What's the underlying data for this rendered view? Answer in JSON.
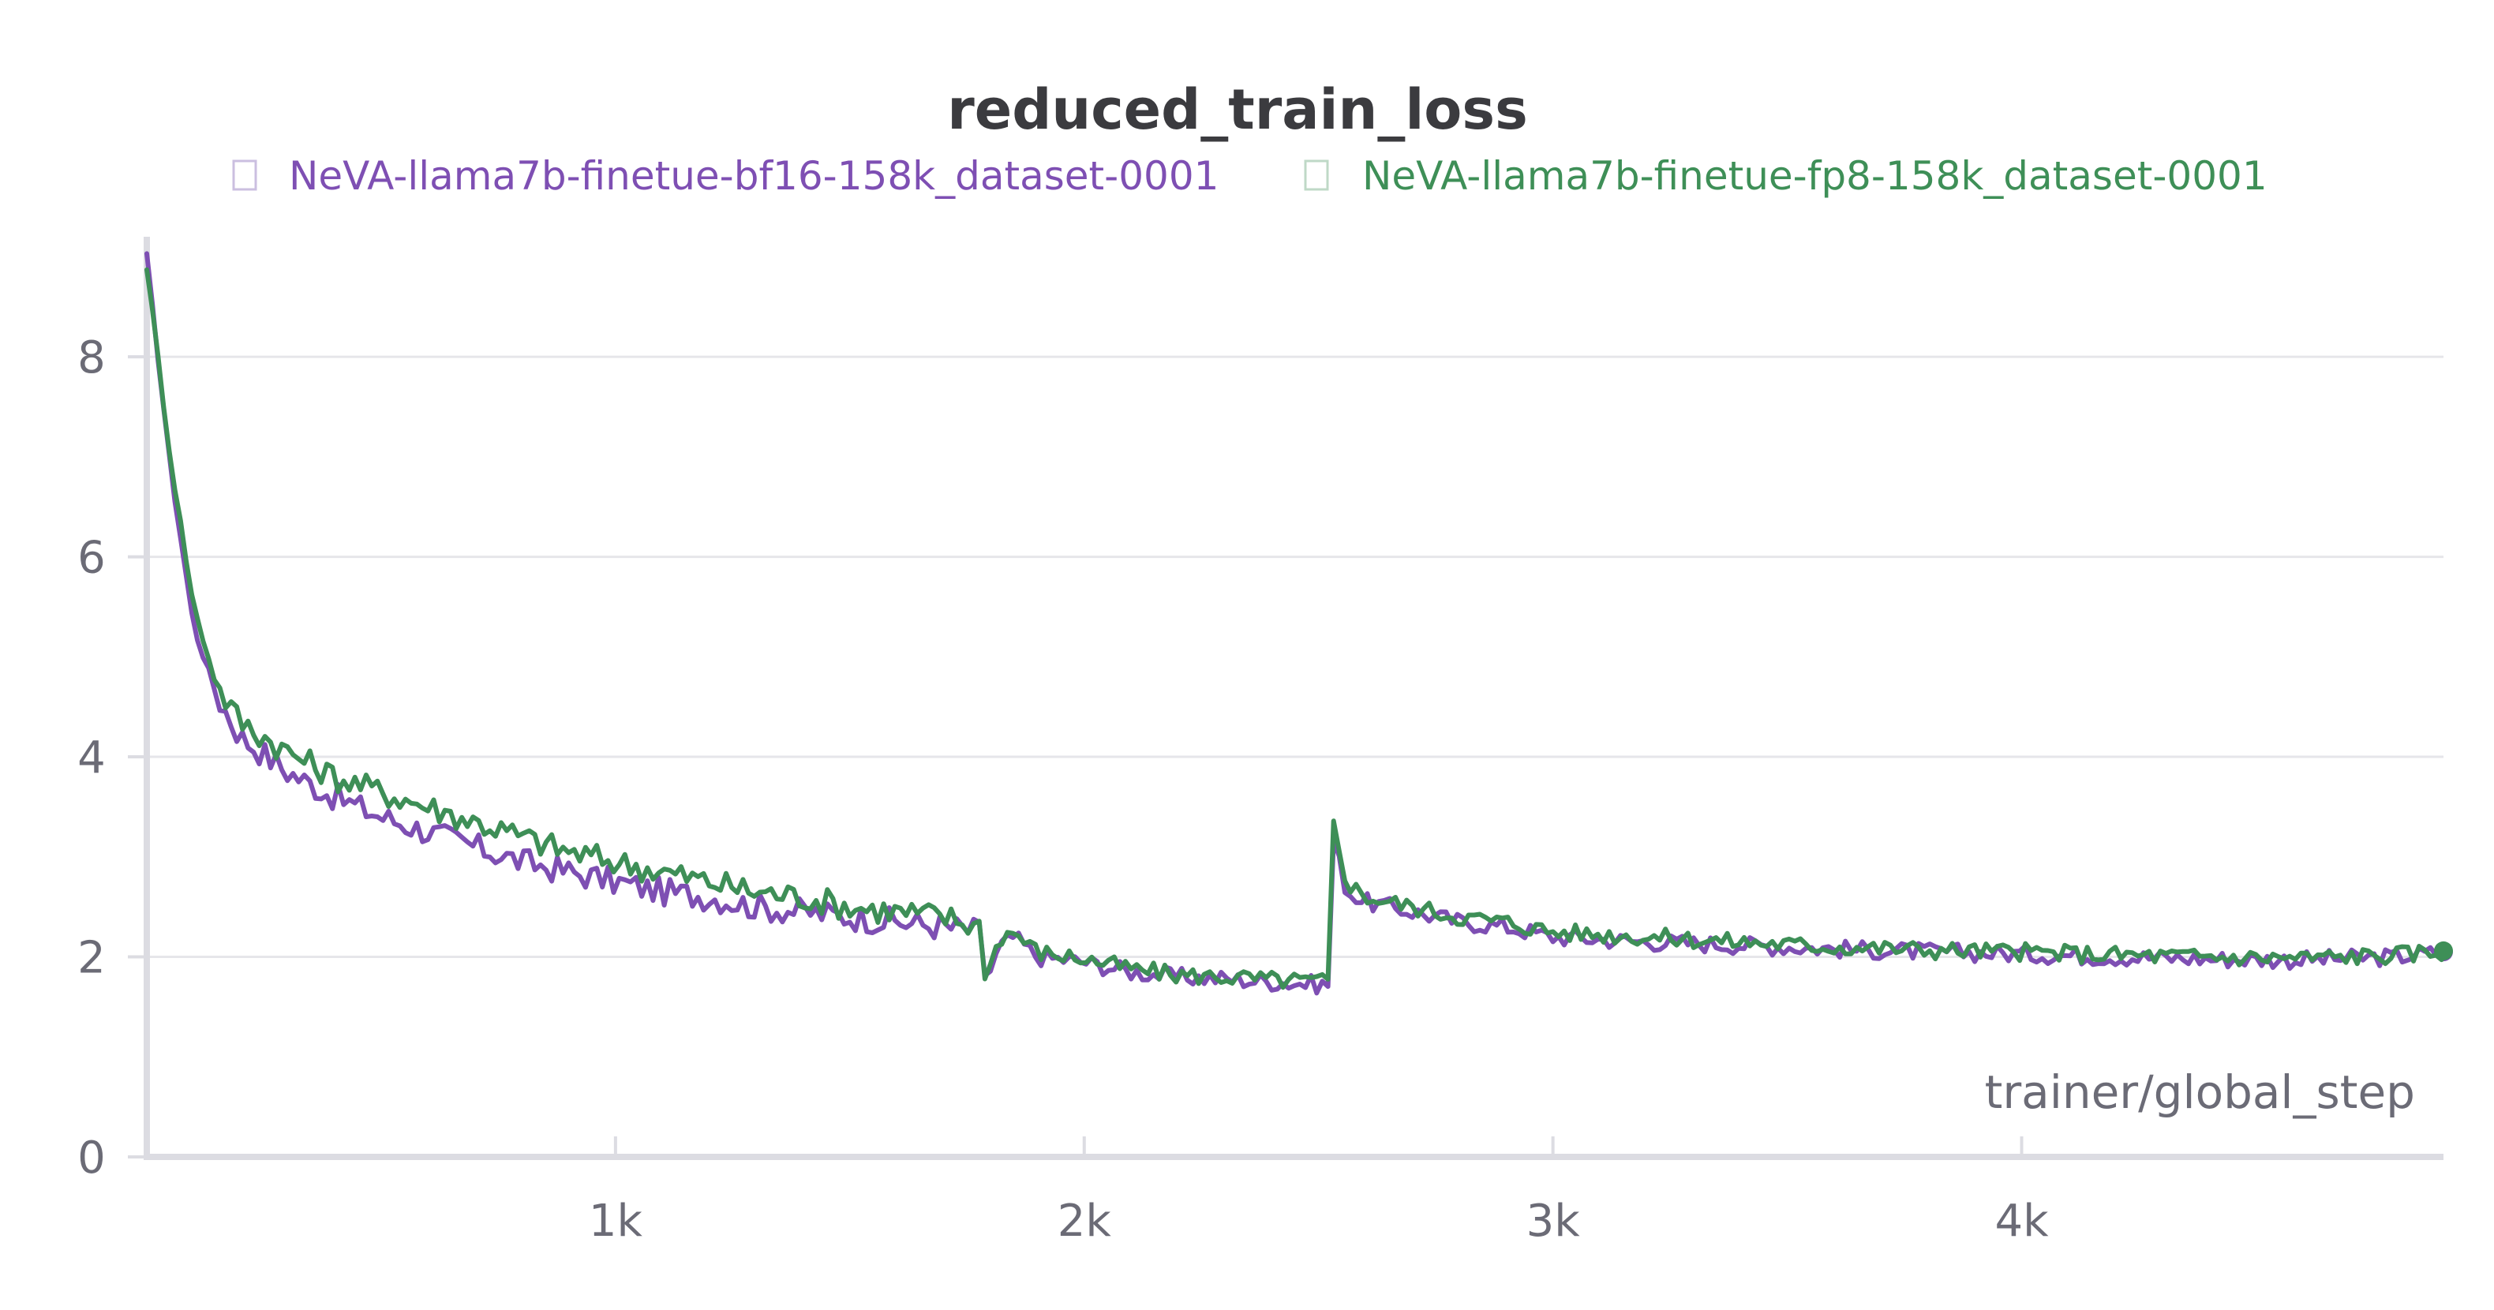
{
  "chart_data": {
    "type": "line",
    "title": "reduced_train_loss",
    "xlabel": "trainer/global_step",
    "ylabel": "",
    "xlim": [
      0,
      4900
    ],
    "ylim": [
      0,
      9.2
    ],
    "x_ticks": [
      1000,
      2000,
      3000,
      4000
    ],
    "x_tick_labels": [
      "1k",
      "2k",
      "3k",
      "4k"
    ],
    "y_ticks": [
      0,
      2,
      4,
      6,
      8
    ],
    "y_tick_labels": [
      "0",
      "2",
      "4",
      "6",
      "8"
    ],
    "grid": true,
    "legend_position": "top",
    "x": [
      0,
      50,
      100,
      150,
      200,
      300,
      400,
      500,
      600,
      700,
      800,
      900,
      1000,
      1100,
      1200,
      1300,
      1400,
      1500,
      1600,
      1700,
      1780,
      1790,
      1820,
      1850,
      1900,
      2000,
      2100,
      2200,
      2300,
      2400,
      2520,
      2530,
      2560,
      2600,
      2700,
      2800,
      2900,
      3000,
      3200,
      3400,
      3600,
      3800,
      4000,
      4200,
      4400,
      4600,
      4800,
      4900
    ],
    "series": [
      {
        "name": "NeVA-llama7b-finetue-bf16-158k_dataset-0001",
        "color": "#7e4fb3",
        "values": [
          9.0,
          6.9,
          5.3,
          4.6,
          4.2,
          3.85,
          3.6,
          3.4,
          3.25,
          3.1,
          2.95,
          2.85,
          2.75,
          2.65,
          2.6,
          2.5,
          2.45,
          2.4,
          2.35,
          2.3,
          2.25,
          1.75,
          2.1,
          2.2,
          2.0,
          1.95,
          1.85,
          1.8,
          1.78,
          1.75,
          1.72,
          3.2,
          2.65,
          2.55,
          2.45,
          2.35,
          2.3,
          2.2,
          2.15,
          2.12,
          2.08,
          2.05,
          2.03,
          2.0,
          1.98,
          1.97,
          2.0,
          2.05
        ]
      },
      {
        "name": "NeVA-llama7b-finetue-fp8-158k_dataset-0001",
        "color": "#3e8f57",
        "values": [
          8.9,
          7.0,
          5.5,
          4.7,
          4.35,
          4.05,
          3.8,
          3.65,
          3.5,
          3.35,
          3.2,
          3.05,
          2.95,
          2.85,
          2.75,
          2.65,
          2.6,
          2.5,
          2.45,
          2.4,
          2.3,
          1.8,
          2.2,
          2.25,
          2.05,
          1.98,
          1.88,
          1.82,
          1.8,
          1.77,
          1.75,
          3.35,
          2.75,
          2.6,
          2.5,
          2.4,
          2.35,
          2.25,
          2.2,
          2.15,
          2.1,
          2.07,
          2.05,
          2.02,
          2.0,
          1.99,
          2.02,
          2.06
        ]
      }
    ]
  }
}
